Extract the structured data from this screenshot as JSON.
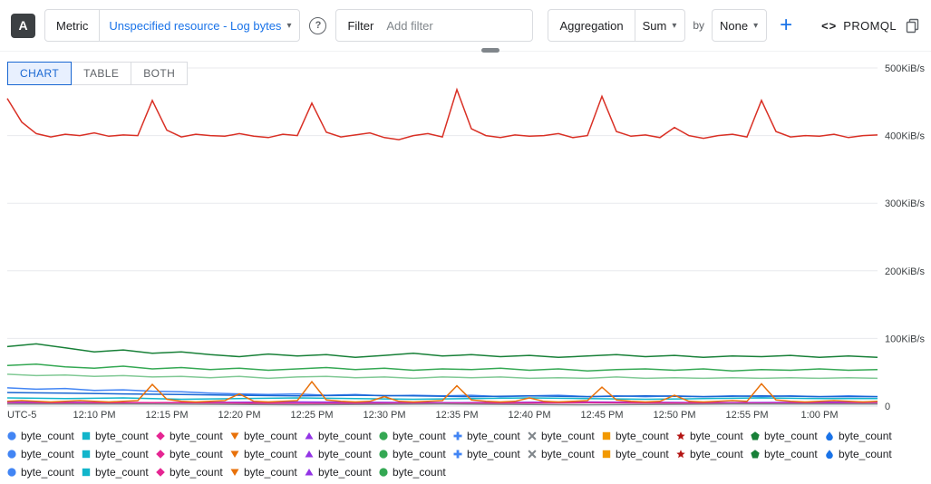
{
  "icons": {
    "caret": "▾",
    "help": "?",
    "code": "<>"
  },
  "toolbar": {
    "badge": "A",
    "metric": {
      "label": "Metric",
      "value": "Unspecified resource - Log bytes"
    },
    "filter": {
      "label": "Filter",
      "placeholder": "Add filter"
    },
    "aggregation": {
      "label": "Aggregation",
      "value": "Sum"
    },
    "by": {
      "label": "by",
      "value": "None"
    },
    "add_label": "+",
    "promql_label": "PROMQL"
  },
  "tabs": [
    {
      "label": "CHART",
      "active": true
    },
    {
      "label": "TABLE",
      "active": false
    },
    {
      "label": "BOTH",
      "active": false
    }
  ],
  "chart_data": {
    "type": "line",
    "title": "",
    "x_axis": {
      "timezone_label": "UTC-5",
      "range_minutes": [
        0,
        60
      ],
      "ticks": [
        {
          "label": "12:10 PM",
          "t": 6
        },
        {
          "label": "12:15 PM",
          "t": 11
        },
        {
          "label": "12:20 PM",
          "t": 16
        },
        {
          "label": "12:25 PM",
          "t": 21
        },
        {
          "label": "12:30 PM",
          "t": 26
        },
        {
          "label": "12:35 PM",
          "t": 31
        },
        {
          "label": "12:40 PM",
          "t": 36
        },
        {
          "label": "12:45 PM",
          "t": 41
        },
        {
          "label": "12:50 PM",
          "t": 46
        },
        {
          "label": "12:55 PM",
          "t": 51
        },
        {
          "label": "1:00 PM",
          "t": 56
        }
      ]
    },
    "y_axis": {
      "unit": "KiB/s",
      "min": 0,
      "max": 500,
      "gridlines": [
        0,
        100,
        200,
        300,
        400,
        500
      ],
      "labels": [
        {
          "label": "500KiB/s",
          "v": 500
        },
        {
          "label": "400KiB/s",
          "v": 400
        },
        {
          "label": "300KiB/s",
          "v": 300
        },
        {
          "label": "200KiB/s",
          "v": 200
        },
        {
          "label": "100KiB/s",
          "v": 100
        },
        {
          "label": "0",
          "v": 0
        }
      ]
    },
    "series": [
      {
        "name": "byte_count",
        "color": "#188038",
        "values": [
          88,
          92,
          86,
          80,
          83,
          78,
          80,
          76,
          73,
          77,
          74,
          76,
          72,
          75,
          78,
          74,
          76,
          73,
          75,
          72,
          74,
          76,
          73,
          75,
          72,
          74,
          73,
          75,
          72,
          74,
          72
        ]
      },
      {
        "name": "byte_count",
        "color": "#34A853",
        "values": [
          60,
          62,
          58,
          56,
          59,
          55,
          57,
          54,
          56,
          53,
          55,
          57,
          54,
          56,
          53,
          55,
          54,
          56,
          53,
          55,
          52,
          54,
          55,
          53,
          55,
          52,
          54,
          53,
          55,
          53,
          54
        ]
      },
      {
        "name": "byte_count",
        "color": "#81C995",
        "values": [
          47,
          45,
          46,
          44,
          45,
          43,
          44,
          42,
          44,
          41,
          43,
          44,
          42,
          43,
          41,
          43,
          42,
          43,
          41,
          42,
          41,
          43,
          41,
          42,
          41,
          42,
          41,
          42,
          41,
          42,
          41
        ]
      },
      {
        "name": "byte_count",
        "color": "#4285F4",
        "values": [
          27,
          25,
          26,
          23,
          24,
          22,
          21,
          19,
          18,
          17,
          18,
          16,
          17,
          15,
          16,
          15,
          16,
          14,
          15,
          16,
          14,
          15,
          14,
          15,
          14,
          15,
          14,
          15,
          14,
          15,
          14
        ]
      },
      {
        "name": "byte_count",
        "color": "#12B5CB",
        "values": [
          12,
          11,
          12,
          10,
          11,
          12,
          11,
          10,
          11,
          12,
          11,
          10,
          11,
          12,
          11,
          11
        ]
      },
      {
        "name": "byte_count",
        "color": "#1967D2",
        "values": [
          20,
          19,
          18,
          17,
          16,
          15,
          16,
          15,
          14,
          15,
          14,
          15,
          14,
          15,
          14,
          14
        ]
      },
      {
        "name": "byte_count",
        "color": "#9334E6",
        "values": [
          6,
          5,
          6,
          5,
          6,
          5,
          6
        ]
      },
      {
        "name": "byte_count",
        "color": "#E52592",
        "values": [
          4,
          5,
          4,
          4,
          5,
          4,
          4
        ]
      },
      {
        "name": "byte_count",
        "color": "#80868B",
        "values": [
          3,
          3,
          2,
          3,
          2,
          3,
          3
        ]
      },
      {
        "name": "byte_count",
        "color": "#E8710A",
        "values": [
          7,
          8,
          7,
          6,
          7,
          8,
          7,
          6,
          7,
          8,
          32,
          10,
          7,
          6,
          7,
          8,
          18,
          7,
          6,
          7,
          8,
          36,
          9,
          7,
          6,
          7,
          14,
          7,
          6,
          7,
          8,
          30,
          9,
          7,
          6,
          7,
          12,
          7,
          6,
          7,
          8,
          28,
          9,
          7,
          6,
          7,
          16,
          7,
          6,
          7,
          8,
          7,
          33,
          9,
          7,
          6,
          7,
          8,
          7,
          6,
          7
        ]
      },
      {
        "name": "byte_count",
        "color": "#D93025",
        "values": [
          455,
          420,
          403,
          398,
          402,
          400,
          404,
          399,
          401,
          400,
          452,
          408,
          398,
          402,
          400,
          399,
          403,
          399,
          397,
          402,
          400,
          448,
          405,
          398,
          401,
          404,
          397,
          394,
          400,
          403,
          398,
          468,
          410,
          400,
          397,
          401,
          399,
          400,
          403,
          397,
          400,
          458,
          406,
          399,
          401,
          397,
          412,
          400,
          396,
          400,
          402,
          398,
          452,
          406,
          398,
          400,
          399,
          402,
          397,
          400,
          401
        ]
      }
    ]
  },
  "legend": {
    "label": "byte_count",
    "items": [
      {
        "shape": "circle",
        "color": "#4285F4"
      },
      {
        "shape": "square",
        "color": "#12B5CB"
      },
      {
        "shape": "diamond",
        "color": "#E52592"
      },
      {
        "shape": "triangle-down",
        "color": "#E8710A"
      },
      {
        "shape": "triangle-up",
        "color": "#9334E6"
      },
      {
        "shape": "circle",
        "color": "#34A853"
      },
      {
        "shape": "plus",
        "color": "#4285F4"
      },
      {
        "shape": "x",
        "color": "#80868B"
      },
      {
        "shape": "square",
        "color": "#F29900"
      },
      {
        "shape": "star",
        "color": "#B31412"
      },
      {
        "shape": "pentagon",
        "color": "#188038"
      },
      {
        "shape": "drop",
        "color": "#1A73E8"
      },
      {
        "shape": "circle",
        "color": "#4285F4"
      },
      {
        "shape": "square",
        "color": "#12B5CB"
      },
      {
        "shape": "diamond",
        "color": "#E52592"
      },
      {
        "shape": "triangle-down",
        "color": "#E8710A"
      },
      {
        "shape": "triangle-up",
        "color": "#9334E6"
      },
      {
        "shape": "circle",
        "color": "#34A853"
      },
      {
        "shape": "plus",
        "color": "#4285F4"
      },
      {
        "shape": "x",
        "color": "#80868B"
      },
      {
        "shape": "square",
        "color": "#F29900"
      },
      {
        "shape": "star",
        "color": "#B31412"
      },
      {
        "shape": "pentagon",
        "color": "#188038"
      },
      {
        "shape": "drop",
        "color": "#1A73E8"
      },
      {
        "shape": "circle",
        "color": "#4285F4"
      },
      {
        "shape": "square",
        "color": "#12B5CB"
      },
      {
        "shape": "diamond",
        "color": "#E52592"
      },
      {
        "shape": "triangle-down",
        "color": "#E8710A"
      },
      {
        "shape": "triangle-up",
        "color": "#9334E6"
      },
      {
        "shape": "circle",
        "color": "#34A853"
      }
    ]
  }
}
